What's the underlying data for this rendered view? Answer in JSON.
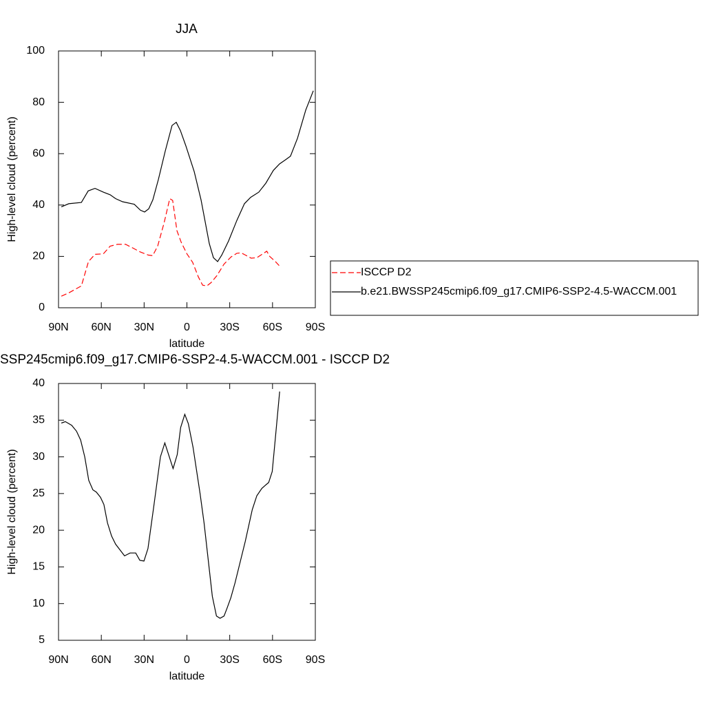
{
  "chart_data": [
    {
      "type": "line",
      "title": "JJA",
      "xlabel": "latitude",
      "ylabel": "High-level cloud (percent)",
      "xlim": [
        90,
        -90
      ],
      "xticks": [
        {
          "value": 90,
          "label": "90N"
        },
        {
          "value": 60,
          "label": "60N"
        },
        {
          "value": 30,
          "label": "30N"
        },
        0,
        {
          "value": -30,
          "label": "30S"
        },
        {
          "value": -60,
          "label": "60S"
        },
        {
          "value": -90,
          "label": "90S"
        }
      ],
      "ylim": [
        0,
        100
      ],
      "yticks": [
        0,
        20,
        40,
        60,
        80,
        100
      ],
      "legend": "right",
      "series": [
        {
          "name": "ISCCP D2",
          "color": "#ff0000",
          "dash": "dashed",
          "x": [
            88,
            82.8,
            74,
            69,
            64.4,
            58.6,
            53.8,
            48.7,
            43,
            38,
            33,
            27,
            24,
            20.5,
            16,
            12,
            10,
            7,
            4,
            0,
            -4,
            -8,
            -11,
            -14,
            -17,
            -21,
            -26,
            -31,
            -35,
            -38,
            -41,
            -45,
            -49,
            -52,
            -56,
            -58,
            -62,
            -65
          ],
          "values": [
            4.5,
            5.8,
            8.5,
            18,
            20.8,
            21,
            24,
            24.7,
            24.7,
            23.3,
            21.8,
            20.5,
            20.3,
            24,
            33,
            42.5,
            41.8,
            30,
            25.5,
            21,
            17.7,
            12,
            8.8,
            8.5,
            9.8,
            12.5,
            17,
            19.8,
            21.2,
            21.4,
            20.5,
            19.3,
            19.5,
            20.6,
            22,
            20,
            18,
            16.2
          ]
        },
        {
          "name": "b.e21.BWSSP245cmip6.f09_g17.CMIP6-SSP2-4.5-WACCM.001",
          "color": "#000000",
          "dash": "solid",
          "x": [
            88,
            82.8,
            74,
            69.2,
            64.4,
            58.6,
            53.8,
            50,
            45.1,
            36.9,
            32.6,
            29.7,
            26.8,
            23.9,
            20,
            15.2,
            10.4,
            7.5,
            4.6,
            0.7,
            -5.1,
            -9.9,
            -15.7,
            -18.6,
            -21.5,
            -24.4,
            -29.2,
            -35,
            -40.3,
            -44.7,
            -50.4,
            -55.3,
            -60.6,
            -64.9,
            -68.8,
            -72.6,
            -77.5,
            -83.3,
            -88.6
          ],
          "values": [
            39.3,
            40.5,
            41,
            45.5,
            46.5,
            45,
            44,
            42.5,
            41.3,
            40.3,
            38,
            37.3,
            38.5,
            42,
            50,
            61,
            71,
            72.2,
            69,
            63,
            53,
            42,
            25,
            19.5,
            18,
            20.5,
            26,
            34,
            40.5,
            43,
            45,
            48.5,
            53.5,
            56,
            57.5,
            59,
            66,
            77,
            84.5
          ]
        }
      ]
    },
    {
      "type": "line",
      "title": "SSP245cmip6.f09_g17.CMIP6-SSP2-4.5-WACCM.001 - ISCCP D2",
      "xlabel": "latitude",
      "ylabel": "High-level cloud (percent)",
      "xlim": [
        90,
        -90
      ],
      "xticks": [
        {
          "value": 90,
          "label": "90N"
        },
        {
          "value": 60,
          "label": "60N"
        },
        {
          "value": 30,
          "label": "30N"
        },
        0,
        {
          "value": -30,
          "label": "30S"
        },
        {
          "value": -60,
          "label": "60S"
        },
        {
          "value": -90,
          "label": "90S"
        }
      ],
      "ylim": [
        5,
        40
      ],
      "yticks": [
        5,
        10,
        15,
        20,
        25,
        30,
        35,
        40
      ],
      "series": [
        {
          "color": "#000000",
          "dash": "solid",
          "x": [
            88,
            85.2,
            80.8,
            77.4,
            74.5,
            71.6,
            68.8,
            65.9,
            63.5,
            60.6,
            58.2,
            55.7,
            52.8,
            50,
            43.7,
            39.8,
            35.9,
            33,
            30.1,
            27.3,
            23.4,
            18.6,
            15.5,
            9.7,
            6.8,
            4.4,
            1.5,
            -1,
            -4.3,
            -9.2,
            -12,
            -17.8,
            -20.7,
            -23.2,
            -26,
            -28,
            -30.8,
            -33.7,
            -40.9,
            -45.8,
            -49,
            -52.5,
            -55.4,
            -57.3,
            -59.8,
            -62.2,
            -65
          ],
          "values": [
            34.6,
            34.8,
            34.3,
            33.5,
            32.3,
            30,
            26.8,
            25.5,
            25.2,
            24.5,
            23.5,
            21,
            19.2,
            18.1,
            16.5,
            16.9,
            16.9,
            15.9,
            15.8,
            17.5,
            23,
            30,
            31.9,
            28.4,
            30.3,
            34,
            35.8,
            34.5,
            31.3,
            25,
            21,
            11,
            8.3,
            8,
            8.3,
            9.3,
            10.8,
            12.8,
            18.5,
            22.8,
            24.7,
            25.7,
            26.2,
            26.5,
            28,
            33,
            38.9
          ]
        }
      ]
    }
  ]
}
